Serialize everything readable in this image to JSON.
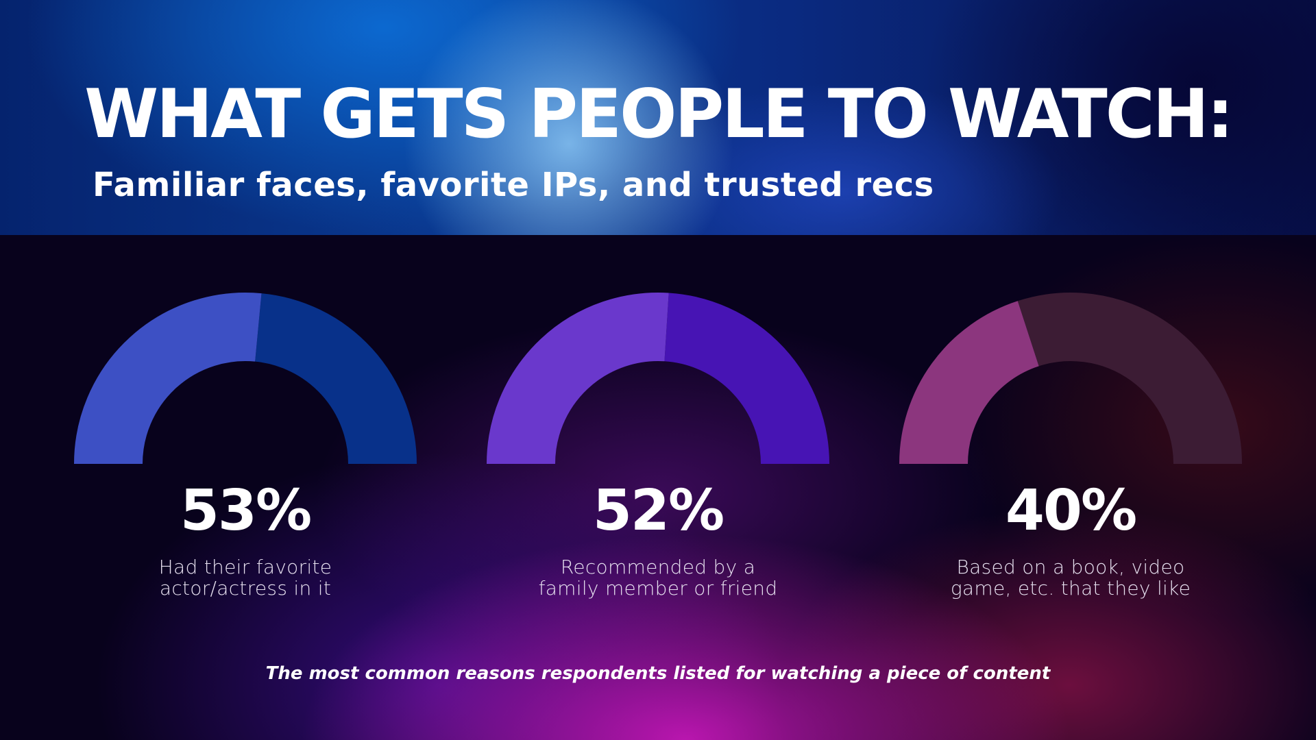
{
  "header": {
    "title": "WHAT GETS PEOPLE TO WATCH:",
    "subtitle": "Familiar faces, favorite IPs, and trusted recs"
  },
  "footnote": "The most common reasons respondents listed for watching a piece of content",
  "chart_data": {
    "type": "gauge",
    "unit": "%",
    "max": 100,
    "items": [
      {
        "value": 53,
        "value_label": "53%",
        "label_lines": [
          "Had their favorite",
          "actor/actress in it"
        ],
        "fill_color": "#3d50c4",
        "track_color": "#08318a"
      },
      {
        "value": 52,
        "value_label": "52%",
        "label_lines": [
          "Recommended by a",
          "family member or friend"
        ],
        "fill_color": "#6a38cc",
        "track_color": "#4714b4"
      },
      {
        "value": 40,
        "value_label": "40%",
        "label_lines": [
          "Based on a book, video",
          "game, etc. that they like"
        ],
        "fill_color": "#8c367e",
        "track_color": "#3c1c34"
      }
    ]
  }
}
